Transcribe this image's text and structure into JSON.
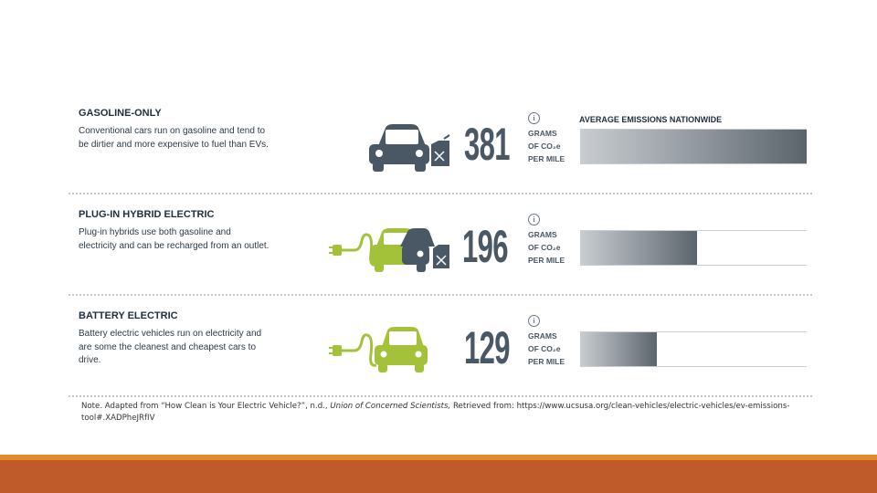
{
  "header_label": "AVERAGE EMISSIONS NATIONWIDE",
  "rows": [
    {
      "title": "GASOLINE-ONLY",
      "description": "Conventional cars run on gasoline and tend to be dirtier and more expensive to fuel than EVs.",
      "value": "381",
      "value_num": 381,
      "unit_line1": "GRAMS",
      "unit_line2": "OF CO₂e",
      "unit_line3": "PER MILE",
      "info": "i"
    },
    {
      "title": "PLUG-IN HYBRID ELECTRIC",
      "description": "Plug-in hybrids use both gasoline and electricity and can be recharged from an outlet.",
      "value": "196",
      "value_num": 196,
      "unit_line1": "GRAMS",
      "unit_line2": "OF CO₂e",
      "unit_line3": "PER MILE",
      "info": "i"
    },
    {
      "title": "BATTERY ELECTRIC",
      "description": "Battery electric vehicles run on electricity and are some the cleanest and cheapest cars to drive.",
      "value": "129",
      "value_num": 129,
      "unit_line1": "GRAMS",
      "unit_line2": "OF CO₂e",
      "unit_line3": "PER MILE",
      "info": "i"
    }
  ],
  "note_prefix": "Note. Adapted from “How Clean is Your Electric Vehicle?”, n.d., ",
  "note_source": "Union of Concerned Scientists,",
  "note_suffix": " Retrieved from: https://www.ucsusa.org/clean-vehicles/electric-vehicles/ev-emissions-tool#.XADPheJRfIV",
  "colors": {
    "dark_car": "#4a5765",
    "green_car": "#a3c23a",
    "footer_bar": "#bf5a2a",
    "footer_line": "#e08a2a"
  }
}
